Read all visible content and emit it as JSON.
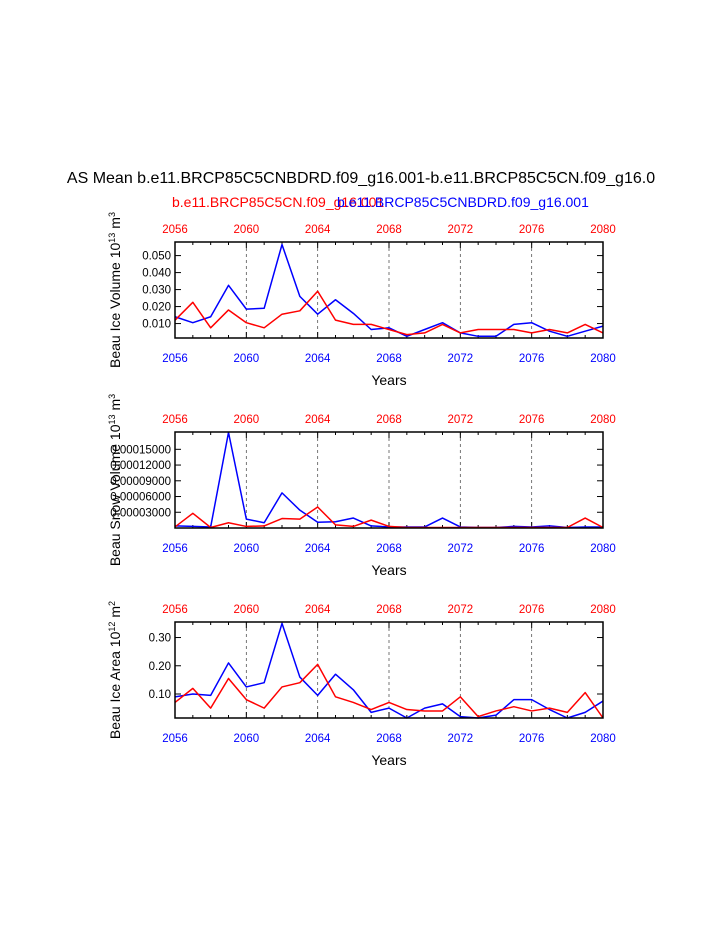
{
  "page_title": "AS Mean b.e11.BRCP85C5CNBDRD.f09_g16.001-b.e11.BRCP85C5CN.f09_g16.0",
  "legend": {
    "red_label": "b.e11.BRCP85C5CN.f09_g16.001",
    "blue_label": "b.e11.BRCP85C5CNBDRD.f09_g16.001"
  },
  "colors": {
    "red": "#ff0000",
    "blue": "#0000ff",
    "axis": "#000000",
    "grid": "#555555"
  },
  "chart_data": [
    {
      "type": "line",
      "title": "Beau Ice Volume",
      "ylabel": "Beau Ice Volume 10",
      "ylabel_sup": "13",
      "ylabel_unit": "m",
      "ylabel_unit_sup": "3",
      "xlabel": "Years",
      "xlim": [
        2056,
        2080
      ],
      "ylim": [
        0.0015,
        0.058
      ],
      "xticks": [
        "2056",
        "2060",
        "2064",
        "2068",
        "2072",
        "2076",
        "2080"
      ],
      "yticks": [
        0.01,
        0.02,
        0.03,
        0.04,
        0.05
      ],
      "ytick_labels": [
        "0.010",
        "0.020",
        "0.030",
        "0.040",
        "0.050"
      ],
      "grid_x": [
        2060,
        2064,
        2068,
        2072,
        2076
      ],
      "x": [
        2056,
        2057,
        2058,
        2059,
        2060,
        2061,
        2062,
        2063,
        2064,
        2065,
        2066,
        2067,
        2068,
        2069,
        2070,
        2071,
        2072,
        2073,
        2074,
        2075,
        2076,
        2077,
        2078,
        2079,
        2080
      ],
      "series": [
        {
          "name": "b.e11.BRCP85C5CNBDRD.f09_g16.001",
          "color": "#0000ff",
          "values": [
            0.014,
            0.0105,
            0.014,
            0.0325,
            0.0185,
            0.019,
            0.0565,
            0.026,
            0.0155,
            0.024,
            0.016,
            0.0065,
            0.0075,
            0.0025,
            0.0065,
            0.0105,
            0.0045,
            0.0025,
            0.0025,
            0.0095,
            0.0105,
            0.0055,
            0.0025,
            0.0055,
            0.0085
          ]
        },
        {
          "name": "b.e11.BRCP85C5CN.f09_g16.001",
          "color": "#ff0000",
          "values": [
            0.012,
            0.0225,
            0.0075,
            0.018,
            0.0105,
            0.0075,
            0.0155,
            0.0175,
            0.029,
            0.012,
            0.0095,
            0.0095,
            0.0065,
            0.0035,
            0.0045,
            0.0095,
            0.0045,
            0.0065,
            0.0065,
            0.0065,
            0.0045,
            0.0065,
            0.0045,
            0.0095,
            0.0045
          ]
        }
      ]
    },
    {
      "type": "line",
      "title": "Beau Snow Volume",
      "ylabel": "Beau Snow Volume 10",
      "ylabel_sup": "13",
      "ylabel_unit": "m",
      "ylabel_unit_sup": "3",
      "xlabel": "Years",
      "xlim": [
        2056,
        2080
      ],
      "ylim": [
        0,
        0.000183
      ],
      "xticks": [
        "2056",
        "2060",
        "2064",
        "2068",
        "2072",
        "2076",
        "2080"
      ],
      "yticks": [
        3e-05,
        6e-05,
        9e-05,
        0.00012,
        0.00015
      ],
      "ytick_labels": [
        "0.00003000",
        "0.00006000",
        "0.00009000",
        "0.00012000",
        "0.00015000"
      ],
      "grid_x": [
        2060,
        2064,
        2068,
        2072,
        2076
      ],
      "x": [
        2056,
        2057,
        2058,
        2059,
        2060,
        2061,
        2062,
        2063,
        2064,
        2065,
        2066,
        2067,
        2068,
        2069,
        2070,
        2071,
        2072,
        2073,
        2074,
        2075,
        2076,
        2077,
        2078,
        2079,
        2080
      ],
      "series": [
        {
          "name": "b.e11.BRCP85C5CNBDRD.f09_g16.001",
          "color": "#0000ff",
          "values": [
            4e-06,
            3e-06,
            2e-06,
            0.000182,
            1.7e-05,
            1e-05,
            6.7e-05,
            3.4e-05,
            1.1e-05,
            1.2e-05,
            1.9e-05,
            4e-06,
            2e-06,
            2e-06,
            2e-06,
            1.9e-05,
            2e-06,
            1e-06,
            1e-06,
            3e-06,
            2e-06,
            4e-06,
            1e-06,
            2e-06,
            2e-06
          ]
        },
        {
          "name": "b.e11.BRCP85C5CN.f09_g16.001",
          "color": "#ff0000",
          "values": [
            2e-06,
            2.8e-05,
            1e-06,
            1e-05,
            3e-06,
            4e-06,
            1.8e-05,
            1.7e-05,
            4e-05,
            6e-06,
            3e-06,
            1.5e-05,
            3e-06,
            1e-06,
            1e-06,
            1e-06,
            1e-06,
            1e-06,
            1e-06,
            1e-06,
            1e-06,
            1e-06,
            1e-06,
            1.9e-05,
            1e-06
          ]
        }
      ]
    },
    {
      "type": "line",
      "title": "Beau Ice Area",
      "ylabel": "Beau Ice Area 10",
      "ylabel_sup": "12",
      "ylabel_unit": "m",
      "ylabel_unit_sup": "2",
      "xlabel": "Years",
      "xlim": [
        2056,
        2080
      ],
      "ylim": [
        0.015,
        0.355
      ],
      "xticks": [
        "2056",
        "2060",
        "2064",
        "2068",
        "2072",
        "2076",
        "2080"
      ],
      "yticks": [
        0.1,
        0.2,
        0.3
      ],
      "ytick_labels": [
        "0.10",
        "0.20",
        "0.30"
      ],
      "grid_x": [
        2060,
        2064,
        2068,
        2072,
        2076
      ],
      "x": [
        2056,
        2057,
        2058,
        2059,
        2060,
        2061,
        2062,
        2063,
        2064,
        2065,
        2066,
        2067,
        2068,
        2069,
        2070,
        2071,
        2072,
        2073,
        2074,
        2075,
        2076,
        2077,
        2078,
        2079,
        2080
      ],
      "series": [
        {
          "name": "b.e11.BRCP85C5CNBDRD.f09_g16.001",
          "color": "#0000ff",
          "values": [
            0.09,
            0.1,
            0.095,
            0.21,
            0.125,
            0.14,
            0.35,
            0.16,
            0.095,
            0.17,
            0.115,
            0.035,
            0.05,
            0.015,
            0.05,
            0.065,
            0.02,
            0.015,
            0.025,
            0.08,
            0.08,
            0.045,
            0.015,
            0.035,
            0.075
          ]
        },
        {
          "name": "b.e11.BRCP85C5CN.f09_g16.001",
          "color": "#ff0000",
          "values": [
            0.07,
            0.12,
            0.05,
            0.155,
            0.08,
            0.05,
            0.125,
            0.14,
            0.205,
            0.09,
            0.07,
            0.045,
            0.07,
            0.045,
            0.04,
            0.04,
            0.09,
            0.02,
            0.04,
            0.055,
            0.04,
            0.05,
            0.035,
            0.105,
            0.015
          ]
        }
      ]
    }
  ]
}
